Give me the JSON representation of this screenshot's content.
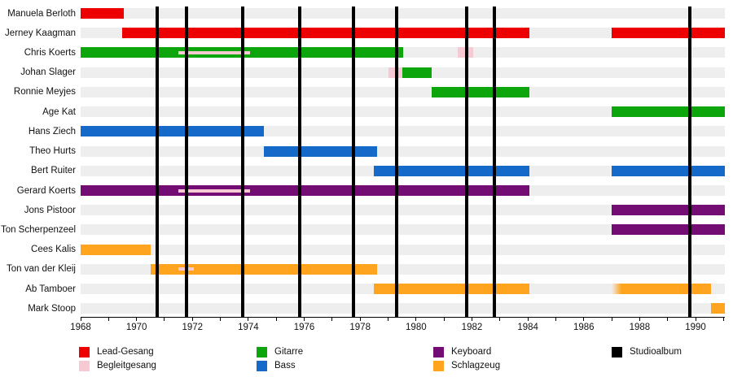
{
  "colors": {
    "Lead-Gesang": "#ee0000",
    "Begleitgesang": "#f7c9d2",
    "Gitarre": "#0ca60c",
    "Bass": "#1569c8",
    "Keyboard": "#730c73",
    "Schlagzeug": "#ffa41e",
    "Studioalbum": "#000000",
    "row_track": "#eeeeee",
    "axis": "#000000"
  },
  "chart_data": {
    "type": "timeline",
    "title": "",
    "x_axis": {
      "start_year": 1968,
      "end_year": 1991.05,
      "tick_every_years": 1,
      "label_every_years": 2
    },
    "x_tick_labels": [
      "1968",
      "1970",
      "1972",
      "1974",
      "1976",
      "1978",
      "1980",
      "1982",
      "1984",
      "1986",
      "1988",
      "1990"
    ],
    "x_label_years": [
      1968,
      1970,
      1972,
      1974,
      1976,
      1978,
      1980,
      1982,
      1984,
      1986,
      1988,
      1990
    ],
    "albums_note": "vertical black lines = Studioalbum release dates (decimal years)",
    "albums": [
      1970.74,
      1971.79,
      1973.8,
      1975.84,
      1977.76,
      1979.31,
      1981.81,
      1982.8,
      1989.8
    ],
    "members": [
      {
        "name": "Manuela Berloth",
        "segments": [
          {
            "role": "Lead-Gesang",
            "start": 1968.0,
            "end": 1969.55
          }
        ]
      },
      {
        "name": "Jerney Kaagman",
        "segments": [
          {
            "role": "Lead-Gesang",
            "start": 1969.5,
            "end": 1984.05
          },
          {
            "role": "Lead-Gesang",
            "start": 1987.0,
            "end": 1991.05
          }
        ]
      },
      {
        "name": "Chris Koerts",
        "segments": [
          {
            "role": "Gitarre",
            "start": 1968.0,
            "end": 1979.55,
            "overlay": {
              "role": "Begleitgesang",
              "start": 1971.5,
              "end": 1974.05
            }
          },
          {
            "role": "Begleitgesang",
            "start": 1981.5,
            "end": 1982.05
          }
        ]
      },
      {
        "name": "Johan Slager",
        "segments": [
          {
            "role": "Begleitgesang",
            "start": 1979.0,
            "end": 1979.5
          },
          {
            "role": "Gitarre",
            "start": 1979.5,
            "end": 1980.55
          }
        ]
      },
      {
        "name": "Ronnie Meyjes",
        "segments": [
          {
            "role": "Gitarre",
            "start": 1980.55,
            "end": 1984.05
          }
        ]
      },
      {
        "name": "Age Kat",
        "segments": [
          {
            "role": "Gitarre",
            "start": 1987.0,
            "end": 1991.05
          }
        ]
      },
      {
        "name": "Hans Ziech",
        "segments": [
          {
            "role": "Bass",
            "start": 1968.0,
            "end": 1974.55
          }
        ]
      },
      {
        "name": "Theo Hurts",
        "segments": [
          {
            "role": "Bass",
            "start": 1974.55,
            "end": 1978.6
          }
        ]
      },
      {
        "name": "Bert Ruiter",
        "segments": [
          {
            "role": "Bass",
            "start": 1978.5,
            "end": 1984.05
          },
          {
            "role": "Bass",
            "start": 1987.0,
            "end": 1991.05
          }
        ]
      },
      {
        "name": "Gerard Koerts",
        "segments": [
          {
            "role": "Keyboard",
            "start": 1968.0,
            "end": 1984.05,
            "overlay": {
              "role": "Begleitgesang",
              "start": 1971.5,
              "end": 1974.05
            }
          }
        ]
      },
      {
        "name": "Jons Pistoor",
        "segments": [
          {
            "role": "Keyboard",
            "start": 1987.0,
            "end": 1991.05
          }
        ]
      },
      {
        "name": "Ton Scherpenzeel",
        "segments": [
          {
            "role": "Keyboard",
            "start": 1987.0,
            "end": 1991.05
          }
        ]
      },
      {
        "name": "Cees Kalis",
        "segments": [
          {
            "role": "Schlagzeug",
            "start": 1968.0,
            "end": 1970.5
          }
        ]
      },
      {
        "name": "Ton van der Kleij",
        "segments": [
          {
            "role": "Schlagzeug",
            "start": 1970.5,
            "end": 1978.6,
            "overlay": {
              "role": "Begleitgesang",
              "start": 1971.5,
              "end": 1972.05
            }
          }
        ]
      },
      {
        "name": "Ab Tamboer",
        "segments": [
          {
            "role": "Schlagzeug",
            "start": 1978.5,
            "end": 1984.05
          },
          {
            "role": "Schlagzeug",
            "start": 1987.0,
            "end": 1990.55,
            "fade": "left"
          }
        ]
      },
      {
        "name": "Mark Stoop",
        "segments": [
          {
            "role": "Schlagzeug",
            "start": 1990.55,
            "end": 1991.05
          }
        ]
      }
    ]
  },
  "legend": {
    "columns": [
      {
        "entries": [
          {
            "label": "Lead-Gesang",
            "role": "Lead-Gesang"
          },
          {
            "label": "Begleitgesang",
            "role": "Begleitgesang"
          }
        ]
      },
      {
        "entries": [
          {
            "label": "Gitarre",
            "role": "Gitarre"
          },
          {
            "label": "Bass",
            "role": "Bass"
          }
        ]
      },
      {
        "entries": [
          {
            "label": "Keyboard",
            "role": "Keyboard"
          },
          {
            "label": "Schlagzeug",
            "role": "Schlagzeug"
          }
        ]
      },
      {
        "entries": [
          {
            "label": "Studioalbum",
            "role": "Studioalbum"
          }
        ]
      }
    ]
  }
}
